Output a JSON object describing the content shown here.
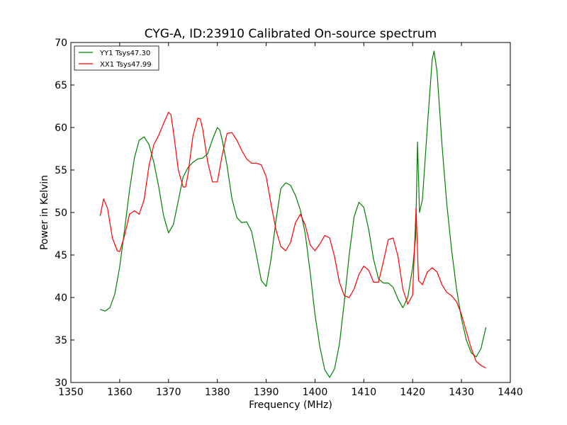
{
  "chart_data": {
    "type": "line",
    "title": "CYG-A, ID:23910 Calibrated On-source spectrum",
    "xlabel": "Frequency (MHz)",
    "ylabel": "Power in Kelvin",
    "xlim": [
      1350,
      1440
    ],
    "ylim": [
      30,
      70
    ],
    "xticks": [
      1350,
      1360,
      1370,
      1380,
      1390,
      1400,
      1410,
      1420,
      1430,
      1440
    ],
    "yticks": [
      30,
      35,
      40,
      45,
      50,
      55,
      60,
      65,
      70
    ],
    "grid": false,
    "legend_position": "top-left",
    "series": [
      {
        "name": "YY1 Tsys47.30",
        "color": "#008000",
        "points": [
          [
            1356,
            38.6
          ],
          [
            1357,
            38.4
          ],
          [
            1358,
            38.8
          ],
          [
            1359,
            40.4
          ],
          [
            1360,
            43.6
          ],
          [
            1361,
            48.0
          ],
          [
            1362,
            52.6
          ],
          [
            1363,
            56.4
          ],
          [
            1364,
            58.5
          ],
          [
            1365,
            58.9
          ],
          [
            1366,
            58.0
          ],
          [
            1367,
            55.9
          ],
          [
            1368,
            53.0
          ],
          [
            1369,
            49.6
          ],
          [
            1370,
            47.6
          ],
          [
            1371,
            48.6
          ],
          [
            1372,
            51.4
          ],
          [
            1373,
            54.2
          ],
          [
            1374,
            55.3
          ],
          [
            1375,
            55.9
          ],
          [
            1376,
            56.3
          ],
          [
            1377,
            56.4
          ],
          [
            1378,
            56.9
          ],
          [
            1379,
            58.6
          ],
          [
            1380,
            60.0
          ],
          [
            1380.5,
            59.7
          ],
          [
            1381,
            58.5
          ],
          [
            1382,
            55.5
          ],
          [
            1383,
            51.6
          ],
          [
            1384,
            49.4
          ],
          [
            1385,
            48.8
          ],
          [
            1386,
            48.9
          ],
          [
            1387,
            47.8
          ],
          [
            1388,
            45.0
          ],
          [
            1389,
            42.0
          ],
          [
            1390,
            41.3
          ],
          [
            1391,
            44.5
          ],
          [
            1392,
            49.0
          ],
          [
            1393,
            52.8
          ],
          [
            1394,
            53.5
          ],
          [
            1395,
            53.2
          ],
          [
            1396,
            52.0
          ],
          [
            1397,
            50.3
          ],
          [
            1398,
            47.5
          ],
          [
            1399,
            43.0
          ],
          [
            1400,
            38.0
          ],
          [
            1401,
            34.2
          ],
          [
            1402,
            31.5
          ],
          [
            1403,
            30.6
          ],
          [
            1404,
            31.6
          ],
          [
            1405,
            34.5
          ],
          [
            1406,
            39.5
          ],
          [
            1407,
            45.0
          ],
          [
            1408,
            49.5
          ],
          [
            1409,
            51.2
          ],
          [
            1410,
            50.6
          ],
          [
            1411,
            48.0
          ],
          [
            1412,
            44.5
          ],
          [
            1413,
            42.2
          ],
          [
            1414,
            41.7
          ],
          [
            1415,
            41.7
          ],
          [
            1416,
            41.2
          ],
          [
            1417,
            39.8
          ],
          [
            1418,
            38.8
          ],
          [
            1419,
            40.0
          ],
          [
            1420,
            43.5
          ],
          [
            1420.6,
            47.0
          ],
          [
            1421,
            58.3
          ],
          [
            1421.4,
            50.0
          ],
          [
            1422,
            51.5
          ],
          [
            1423,
            60.0
          ],
          [
            1424,
            68.0
          ],
          [
            1424.4,
            69.0
          ],
          [
            1425,
            66.5
          ],
          [
            1426,
            58.0
          ],
          [
            1427,
            51.0
          ],
          [
            1428,
            45.5
          ],
          [
            1429,
            41.0
          ],
          [
            1430,
            37.5
          ],
          [
            1431,
            35.0
          ],
          [
            1432,
            33.5
          ],
          [
            1433,
            33.0
          ],
          [
            1434,
            34.0
          ],
          [
            1435,
            36.5
          ]
        ]
      },
      {
        "name": "XX1 Tsys47.99",
        "color": "#ff0000",
        "points": [
          [
            1356,
            49.6
          ],
          [
            1356.7,
            51.6
          ],
          [
            1357.5,
            50.5
          ],
          [
            1358.5,
            47.0
          ],
          [
            1359.5,
            45.5
          ],
          [
            1360,
            45.4
          ],
          [
            1361,
            47.3
          ],
          [
            1362,
            49.8
          ],
          [
            1363,
            50.2
          ],
          [
            1364,
            49.8
          ],
          [
            1365,
            51.5
          ],
          [
            1366,
            55.5
          ],
          [
            1367,
            58.0
          ],
          [
            1368,
            59.1
          ],
          [
            1369,
            60.5
          ],
          [
            1370,
            61.8
          ],
          [
            1370.5,
            61.5
          ],
          [
            1371,
            59.5
          ],
          [
            1372,
            55.0
          ],
          [
            1373,
            53.0
          ],
          [
            1373.5,
            53.0
          ],
          [
            1374,
            54.5
          ],
          [
            1375,
            59.0
          ],
          [
            1376,
            61.1
          ],
          [
            1376.5,
            61.0
          ],
          [
            1377,
            59.8
          ],
          [
            1378,
            56.0
          ],
          [
            1379,
            53.6
          ],
          [
            1380,
            53.6
          ],
          [
            1381,
            56.8
          ],
          [
            1382,
            59.3
          ],
          [
            1383,
            59.4
          ],
          [
            1384,
            58.5
          ],
          [
            1385,
            57.3
          ],
          [
            1386,
            56.3
          ],
          [
            1387,
            55.8
          ],
          [
            1388,
            55.8
          ],
          [
            1389,
            55.6
          ],
          [
            1390,
            54.2
          ],
          [
            1391,
            51.0
          ],
          [
            1392,
            48.0
          ],
          [
            1393,
            46.0
          ],
          [
            1394,
            45.5
          ],
          [
            1395,
            46.5
          ],
          [
            1396,
            48.8
          ],
          [
            1397,
            49.8
          ],
          [
            1398,
            48.5
          ],
          [
            1399,
            46.2
          ],
          [
            1400,
            45.5
          ],
          [
            1401,
            46.3
          ],
          [
            1402,
            47.3
          ],
          [
            1403,
            47.0
          ],
          [
            1404,
            44.8
          ],
          [
            1405,
            41.8
          ],
          [
            1406,
            40.2
          ],
          [
            1407,
            40.0
          ],
          [
            1408,
            41.0
          ],
          [
            1409,
            42.7
          ],
          [
            1410,
            43.7
          ],
          [
            1411,
            43.2
          ],
          [
            1412,
            41.8
          ],
          [
            1413,
            41.8
          ],
          [
            1414,
            44.2
          ],
          [
            1415,
            46.8
          ],
          [
            1416,
            47.0
          ],
          [
            1417,
            44.8
          ],
          [
            1418,
            41.0
          ],
          [
            1419,
            39.2
          ],
          [
            1420,
            40.3
          ],
          [
            1420.7,
            50.5
          ],
          [
            1421.2,
            42.0
          ],
          [
            1422,
            41.5
          ],
          [
            1423,
            43.0
          ],
          [
            1424,
            43.5
          ],
          [
            1425,
            43.0
          ],
          [
            1426,
            41.5
          ],
          [
            1427,
            40.6
          ],
          [
            1428,
            40.2
          ],
          [
            1429,
            39.5
          ],
          [
            1430,
            38.0
          ],
          [
            1431,
            36.0
          ],
          [
            1432,
            34.0
          ],
          [
            1433,
            32.5
          ],
          [
            1434,
            32.0
          ],
          [
            1435,
            31.7
          ]
        ]
      }
    ]
  }
}
